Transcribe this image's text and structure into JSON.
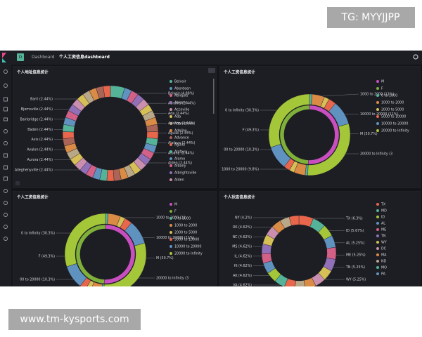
{
  "watermarks": {
    "top": "TG: MYYJJPP",
    "bottom": "www.tm-kysports.com"
  },
  "topbar": {
    "badge": "D",
    "app": "Dashboard",
    "title": "个人工资信息dashboard"
  },
  "panels": [
    {
      "title": "个人地址信息统计",
      "labels_left": [
        "Barri (2.44%)",
        "Bjornsville (2.44%)",
        "Bainbridge (2.44%)",
        "Baden (2.44%)",
        "Axis (2.44%)",
        "Avalon (2.44%)",
        "Aurora (2.44%)",
        "Alleghenyville (2.44%)"
      ],
      "labels_right": [
        "Belvoir (4.88%)",
        "Abrams (2.44%)",
        "Ada (2.44%)",
        "Adelino (2.44%)",
        "Aguila (2.44%)",
        "Alafaya (2.44%)",
        "Albany (2.44%)",
        "Alden (2.44%)"
      ],
      "legend": [
        {
          "name": "Belvoir",
          "color": "#54b399"
        },
        {
          "name": "Aberdeen",
          "color": "#6092c0"
        },
        {
          "name": "Abiiquiu",
          "color": "#d36086"
        },
        {
          "name": "Abrams",
          "color": "#9170b8"
        },
        {
          "name": "Accoville",
          "color": "#ca8eae"
        },
        {
          "name": "Ada",
          "color": "#d6bf57"
        },
        {
          "name": "Adamstown",
          "color": "#b9a888"
        },
        {
          "name": "Adelino",
          "color": "#da8b45"
        },
        {
          "name": "Advance",
          "color": "#aa6556"
        },
        {
          "name": "Aguila",
          "color": "#e7664c"
        },
        {
          "name": "Alafaya",
          "color": "#54b399"
        },
        {
          "name": "Alamo",
          "color": "#6092c0"
        },
        {
          "name": "Albany",
          "color": "#d36086"
        },
        {
          "name": "Albrightsville",
          "color": "#9170b8"
        },
        {
          "name": "Alden",
          "color": "#ca8eae"
        }
      ],
      "rings": [
        {
          "palette": [
            "#54b399",
            "#6092c0",
            "#d36086",
            "#9170b8",
            "#ca8eae",
            "#d6bf57",
            "#b9a888",
            "#da8b45",
            "#aa6556",
            "#e7664c"
          ],
          "values": [
            4.88,
            2.44,
            2.44,
            2.44,
            2.44,
            2.44,
            2.44,
            2.44,
            2.44,
            2.44,
            2.44,
            2.44,
            2.44,
            2.44,
            2.44,
            2.44,
            2.44,
            2.44,
            2.44,
            2.44,
            2.44,
            2.44,
            2.44,
            2.44,
            2.44,
            2.44,
            2.44,
            2.44,
            2.44,
            2.44,
            2.44,
            2.44,
            2.44,
            2.44,
            2.44,
            2.44,
            2.44,
            2.44,
            2.44,
            2.44
          ]
        }
      ]
    },
    {
      "title": "个人工资信息统计",
      "labels_left": [
        "0 to Infinity (30.3%)",
        "F (49.3%)",
        "00 to 20000 (10.3%)",
        "1000 to 20000 (9.8%)"
      ],
      "labels_right": [
        "1000 to 2000 (11%)",
        "10000 to 20000 (11%)",
        "M (50.7%)",
        "20000 to Infinity (3"
      ],
      "legend": [
        {
          "name": "M",
          "color": "#c94fc0"
        },
        {
          "name": "F",
          "color": "#7fb03a"
        },
        {
          "name": "0 to 1000",
          "color": "#54b399"
        },
        {
          "name": "1000 to 2000",
          "color": "#da8b45"
        },
        {
          "name": "2000 to 5000",
          "color": "#d6bf57"
        },
        {
          "name": "5000 to 10000",
          "color": "#e7664c"
        },
        {
          "name": "10000 to 20000",
          "color": "#6092c0"
        },
        {
          "name": "20000 to Infinity",
          "color": "#a4c639"
        }
      ],
      "rings": [
        {
          "palette": [
            "#c94fc0",
            "#7fb03a"
          ],
          "values": [
            50.7,
            49.3
          ]
        },
        {
          "palette": [
            "#54b399",
            "#da8b45",
            "#d6bf57",
            "#e7664c",
            "#6092c0",
            "#a4c639"
          ],
          "values": [
            1,
            5,
            2,
            3,
            9.6,
            30.1,
            1,
            4.5,
            2,
            2.5,
            9.3,
            30
          ]
        }
      ]
    },
    {
      "title": "个人工资信息统计",
      "labels_left": [
        "0 to Infinity (30.3%)",
        "F (49.3%)",
        "00 to 20000 (10.3%)"
      ],
      "labels_right": [
        "1000 to 2000 (11",
        "10000 to 20000 (11%)",
        "M (50.7%)",
        "20000 to Infinity (3"
      ],
      "legend": [
        {
          "name": "M",
          "color": "#c94fc0"
        },
        {
          "name": "F",
          "color": "#7fb03a"
        },
        {
          "name": "0 to 1000",
          "color": "#54b399"
        },
        {
          "name": "1000 to 2000",
          "color": "#da8b45"
        },
        {
          "name": "2000 to 5000",
          "color": "#d6bf57"
        },
        {
          "name": "5000 to 10000",
          "color": "#e7664c"
        },
        {
          "name": "10000 to 20000",
          "color": "#6092c0"
        },
        {
          "name": "20000 to Infinity",
          "color": "#a4c639"
        }
      ],
      "rings": [
        {
          "palette": [
            "#c94fc0",
            "#7fb03a"
          ],
          "values": [
            50.7,
            49.3
          ]
        },
        {
          "palette": [
            "#54b399",
            "#da8b45",
            "#d6bf57",
            "#e7664c",
            "#6092c0",
            "#a4c639"
          ],
          "values": [
            1,
            5,
            2,
            3,
            9.6,
            30.1,
            1,
            4.5,
            2,
            2.5,
            9.3,
            30
          ]
        }
      ]
    },
    {
      "title": "个人状态信息统计",
      "labels_left": [
        "NY (4.2%)",
        "OK (4.62%)",
        "NC (4.62%)",
        "MS (4.62%)",
        "IL (4.62%)",
        "HI (4.62%)",
        "AK (4.62%)",
        "VA (4.62%)"
      ],
      "labels_right": [
        "TX (6.3%)",
        "ID (5.67%)",
        "AL (5.25%)",
        "ME (5.25%)",
        "TN (5.25%)",
        "WY (5.25%)"
      ],
      "legend": [
        {
          "name": "TX",
          "color": "#e7664c"
        },
        {
          "name": "MD",
          "color": "#54b399"
        },
        {
          "name": "ID",
          "color": "#a4c639"
        },
        {
          "name": "AL",
          "color": "#6092c0"
        },
        {
          "name": "ME",
          "color": "#d36086"
        },
        {
          "name": "TN",
          "color": "#9170b8"
        },
        {
          "name": "WY",
          "color": "#d6bf57"
        },
        {
          "name": "DC",
          "color": "#ca8eae"
        },
        {
          "name": "MA",
          "color": "#da8b45"
        },
        {
          "name": "ND",
          "color": "#b9a888"
        },
        {
          "name": "MO",
          "color": "#54b399"
        },
        {
          "name": "PA",
          "color": "#6092c0"
        }
      ],
      "rings": [
        {
          "palette": [
            "#e7664c",
            "#54b399",
            "#a4c639",
            "#6092c0",
            "#d36086",
            "#9170b8",
            "#d6bf57",
            "#ca8eae",
            "#da8b45",
            "#b9a888"
          ],
          "values": [
            6.3,
            5.67,
            5.25,
            5.25,
            5.25,
            5.25,
            4.62,
            4.62,
            4.62,
            4.62,
            4.62,
            4.62,
            4.62,
            4.62,
            4.2,
            4.2,
            4.2,
            4.2,
            4.2,
            4.2,
            4.2
          ]
        }
      ]
    }
  ]
}
